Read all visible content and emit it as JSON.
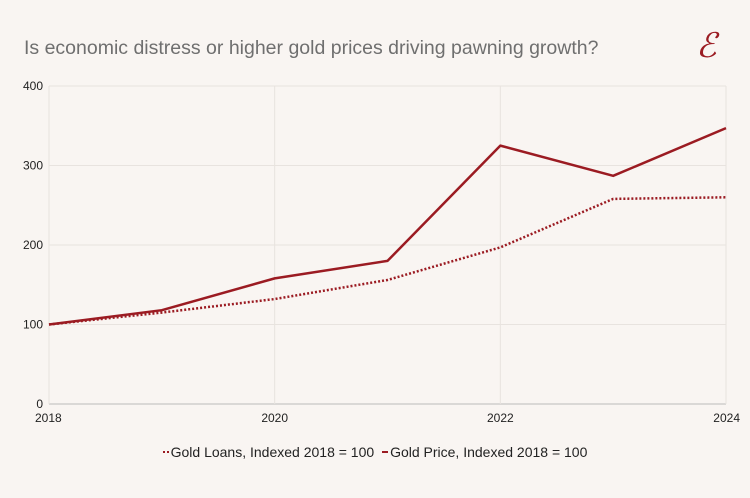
{
  "chart_data": {
    "type": "line",
    "title": "Is economic distress or higher gold prices driving pawning growth?",
    "x": [
      2018,
      2019,
      2020,
      2021,
      2022,
      2023,
      2024
    ],
    "xticks": [
      "2018",
      "2020",
      "2022",
      "2024"
    ],
    "yticks": [
      "0",
      "100",
      "200",
      "300",
      "400"
    ],
    "xlim": [
      2018,
      2024
    ],
    "ylim": [
      0,
      400
    ],
    "grid": true,
    "legend": "bottom",
    "series": [
      {
        "name": "Gold Loans, Indexed 2018 = 100",
        "style": "dotted",
        "color": "#9b1b22",
        "values": [
          100,
          115,
          132,
          156,
          197,
          258,
          260
        ]
      },
      {
        "name": "Gold Price, Indexed 2018 = 100",
        "style": "solid",
        "color": "#9b1b22",
        "values": [
          100,
          118,
          158,
          180,
          325,
          287,
          347
        ]
      }
    ]
  },
  "logo": {
    "text": "E"
  }
}
